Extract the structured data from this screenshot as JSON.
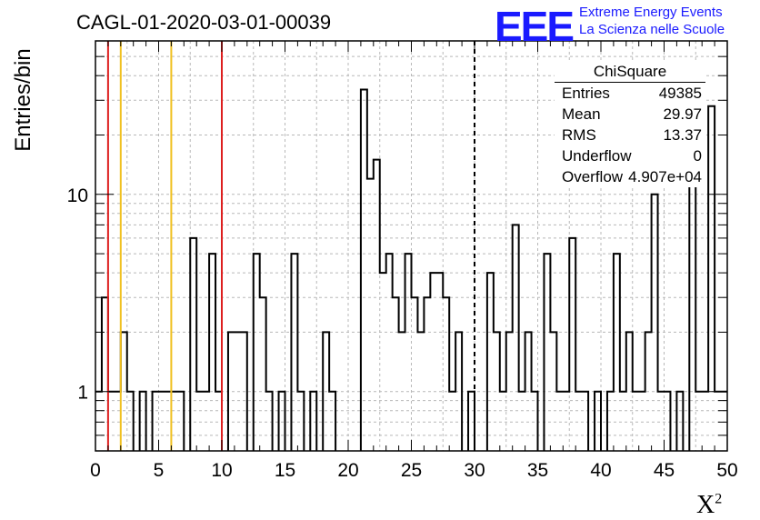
{
  "title": "CAGL-01-2020-03-01-00039",
  "logo": {
    "mark": "EEE",
    "line1": "Extreme Energy Events",
    "line2": "La Scienza nelle Scuole",
    "color": "#1a1aff"
  },
  "stats_box": {
    "name": "ChiSquare",
    "rows": [
      {
        "key": "Entries",
        "value": "49385"
      },
      {
        "key": "Mean",
        "value": "29.97"
      },
      {
        "key": "RMS",
        "value": "13.37"
      },
      {
        "key": "Underflow",
        "value": "0"
      },
      {
        "key": "Overflow",
        "value": "4.907e+04"
      }
    ]
  },
  "chart_data": {
    "type": "histogram",
    "title": "CAGL-01-2020-03-01-00039",
    "xlabel": "X",
    "xlabel_superscript": "2",
    "ylabel": "Entries/bin",
    "x_range": [
      0,
      50
    ],
    "y_range": [
      0.5,
      60
    ],
    "y_scale": "log",
    "grid": true,
    "bin_width": 0.5,
    "x_ticks": [
      "0",
      "5",
      "10",
      "15",
      "20",
      "25",
      "30",
      "35",
      "40",
      "45",
      "50"
    ],
    "y_ticks": [
      "1",
      "10"
    ],
    "bin_values": [
      1,
      3,
      1,
      1,
      2,
      1,
      0,
      1,
      0,
      1,
      1,
      1,
      1,
      1,
      0,
      6,
      1,
      1,
      5,
      1,
      0,
      2,
      2,
      2,
      0,
      5,
      3,
      1,
      0,
      1,
      0,
      5,
      1,
      0,
      1,
      0,
      2,
      1,
      0,
      0,
      0,
      0,
      34,
      12,
      15,
      4,
      5,
      3,
      2,
      5,
      3,
      2,
      3,
      4,
      4,
      3,
      1,
      2,
      0,
      1,
      0,
      0,
      4,
      2,
      1,
      2,
      7,
      1,
      2,
      1,
      0,
      5,
      2,
      1,
      1,
      6,
      1,
      1,
      0,
      1,
      0,
      1,
      5,
      1,
      2,
      1,
      1,
      2,
      10,
      1,
      1,
      0,
      1,
      0,
      18,
      1,
      1,
      28,
      1,
      1
    ],
    "vertical_lines": [
      {
        "x": 1,
        "color": "#dd1f1f",
        "style": "solid"
      },
      {
        "x": 2,
        "color": "#f0c020",
        "style": "solid"
      },
      {
        "x": 6,
        "color": "#f0c020",
        "style": "solid"
      },
      {
        "x": 10,
        "color": "#dd1f1f",
        "style": "solid"
      },
      {
        "x": 30,
        "color": "#000000",
        "style": "dashed"
      }
    ],
    "legend": "stats box top-right"
  }
}
